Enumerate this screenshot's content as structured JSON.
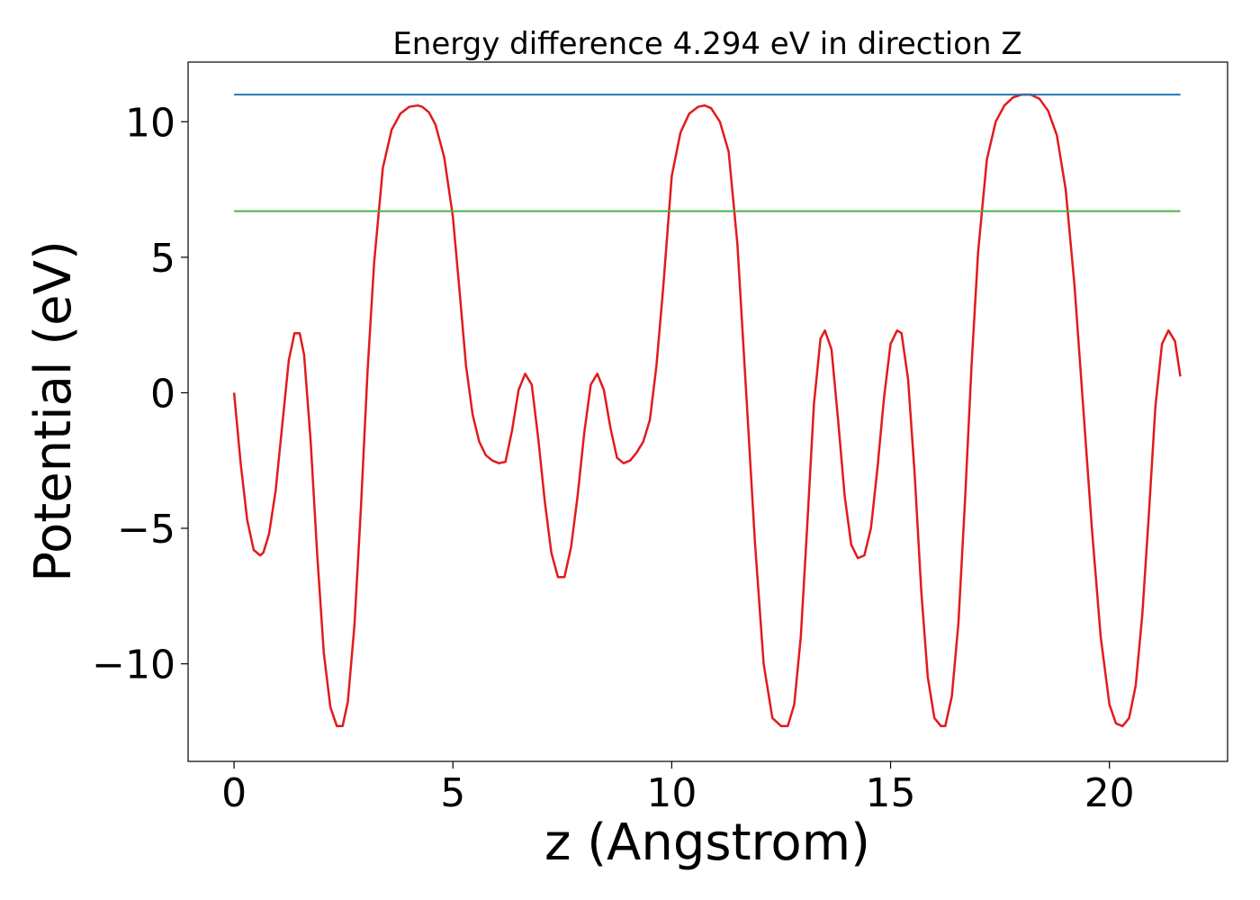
{
  "chart_data": {
    "type": "line",
    "title": "Energy difference 4.294 eV in direction Z",
    "xlabel": "z (Angstrom)",
    "ylabel": "Potential (eV)",
    "xlim": [
      -1.05,
      22.7
    ],
    "ylim": [
      -13.6,
      12.2
    ],
    "xticks": [
      0,
      5,
      10,
      15,
      20
    ],
    "xtick_labels": [
      "0",
      "5",
      "10",
      "15",
      "20"
    ],
    "yticks": [
      -10,
      -5,
      0,
      5,
      10
    ],
    "ytick_labels": [
      "−10",
      "−5",
      "0",
      "5",
      "10"
    ],
    "grid": false,
    "legend": "none",
    "series": [
      {
        "kind": "curve",
        "color": "#e31a1c",
        "x": [
          0.0,
          0.15,
          0.3,
          0.45,
          0.6,
          0.67,
          0.8,
          0.95,
          1.1,
          1.25,
          1.38,
          1.5,
          1.6,
          1.75,
          1.9,
          2.05,
          2.2,
          2.35,
          2.48,
          2.6,
          2.75,
          2.9,
          3.05,
          3.2,
          3.4,
          3.6,
          3.8,
          4.0,
          4.2,
          4.3,
          4.45,
          4.6,
          4.8,
          5.0,
          5.15,
          5.3,
          5.45,
          5.6,
          5.75,
          5.9,
          6.05,
          6.2,
          6.35,
          6.5,
          6.65,
          6.8,
          6.95,
          7.1,
          7.25,
          7.4,
          7.55,
          7.7,
          7.85,
          8.0,
          8.15,
          8.3,
          8.45,
          8.6,
          8.75,
          8.9,
          9.05,
          9.2,
          9.35,
          9.5,
          9.65,
          9.8,
          10.0,
          10.2,
          10.4,
          10.6,
          10.75,
          10.9,
          11.1,
          11.3,
          11.5,
          11.7,
          11.9,
          12.1,
          12.3,
          12.5,
          12.65,
          12.8,
          12.95,
          13.1,
          13.25,
          13.4,
          13.5,
          13.65,
          13.8,
          13.95,
          14.1,
          14.25,
          14.4,
          14.55,
          14.7,
          14.85,
          15.0,
          15.15,
          15.25,
          15.4,
          15.55,
          15.7,
          15.85,
          16.0,
          16.15,
          16.25,
          16.4,
          16.55,
          16.7,
          16.85,
          17.0,
          17.2,
          17.4,
          17.6,
          17.8,
          18.0,
          18.2,
          18.4,
          18.6,
          18.8,
          19.0,
          19.2,
          19.4,
          19.6,
          19.8,
          20.0,
          20.15,
          20.3,
          20.45,
          20.6,
          20.75,
          20.9,
          21.05,
          21.2,
          21.35,
          21.5,
          21.62
        ],
        "y": [
          0.0,
          -2.6,
          -4.7,
          -5.8,
          -6.0,
          -5.9,
          -5.2,
          -3.6,
          -1.2,
          1.2,
          2.2,
          2.2,
          1.4,
          -1.8,
          -6.0,
          -9.6,
          -11.6,
          -12.3,
          -12.3,
          -11.4,
          -8.6,
          -4.2,
          0.8,
          4.8,
          8.3,
          9.7,
          10.3,
          10.55,
          10.6,
          10.55,
          10.35,
          9.9,
          8.7,
          6.5,
          3.8,
          1.0,
          -0.8,
          -1.8,
          -2.3,
          -2.5,
          -2.6,
          -2.55,
          -1.4,
          0.1,
          0.7,
          0.3,
          -1.7,
          -4.0,
          -5.9,
          -6.8,
          -6.8,
          -5.7,
          -3.8,
          -1.5,
          0.3,
          0.7,
          0.1,
          -1.3,
          -2.4,
          -2.6,
          -2.5,
          -2.2,
          -1.8,
          -1.0,
          1.0,
          3.8,
          8.0,
          9.6,
          10.3,
          10.55,
          10.6,
          10.5,
          10.0,
          8.9,
          5.5,
          0.0,
          -5.5,
          -10.0,
          -12.0,
          -12.3,
          -12.3,
          -11.5,
          -9.0,
          -4.8,
          -0.4,
          2.0,
          2.3,
          1.6,
          -1.0,
          -3.8,
          -5.6,
          -6.1,
          -6.0,
          -5.0,
          -2.8,
          -0.2,
          1.8,
          2.3,
          2.2,
          0.5,
          -3.0,
          -7.3,
          -10.5,
          -12.0,
          -12.3,
          -12.3,
          -11.2,
          -8.5,
          -4.0,
          1.0,
          5.2,
          8.6,
          10.0,
          10.6,
          10.9,
          11.0,
          11.0,
          10.85,
          10.4,
          9.5,
          7.5,
          4.0,
          -0.5,
          -5.0,
          -9.0,
          -11.5,
          -12.2,
          -12.3,
          -12.0,
          -10.8,
          -8.2,
          -4.5,
          -0.5,
          1.8,
          2.3,
          1.9,
          0.6
        ]
      },
      {
        "kind": "hline",
        "color": "#1f77b4",
        "x": [
          0.0,
          21.62
        ],
        "y": [
          11.0,
          11.0
        ]
      },
      {
        "kind": "hline",
        "color": "#4daf4a",
        "x": [
          0.0,
          21.62
        ],
        "y": [
          6.7,
          6.7
        ]
      }
    ]
  }
}
